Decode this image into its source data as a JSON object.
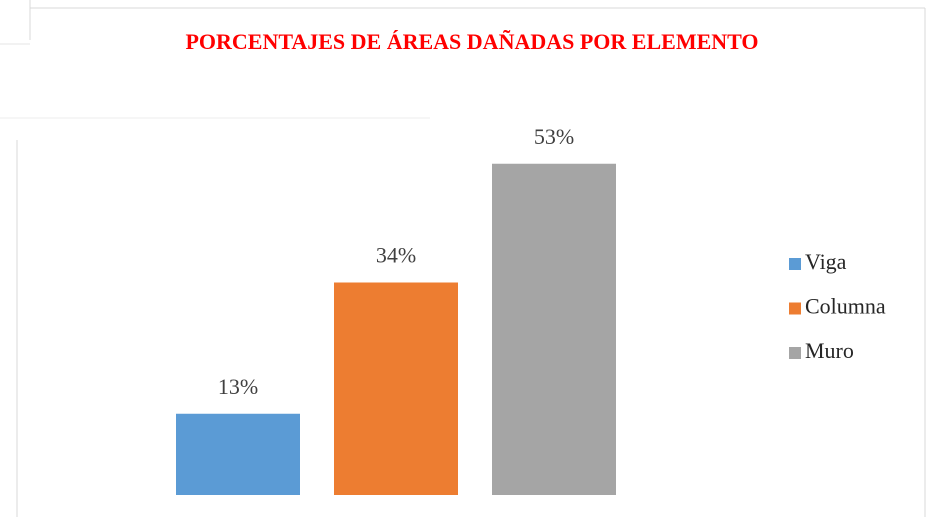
{
  "chart_data": {
    "type": "bar",
    "title": "PORCENTAJES DE ÁREAS DAÑADAS POR ELEMENTO",
    "series": [
      {
        "name": "Viga",
        "color": "#5b9bd5",
        "values": [
          13
        ],
        "value_labels": [
          "13%"
        ]
      },
      {
        "name": "Columna",
        "color": "#ed7d31",
        "values": [
          34
        ],
        "value_labels": [
          "34%"
        ]
      },
      {
        "name": "Muro",
        "color": "#a5a5a5",
        "values": [
          53
        ],
        "value_labels": [
          "53%"
        ]
      }
    ],
    "legend": "right"
  }
}
